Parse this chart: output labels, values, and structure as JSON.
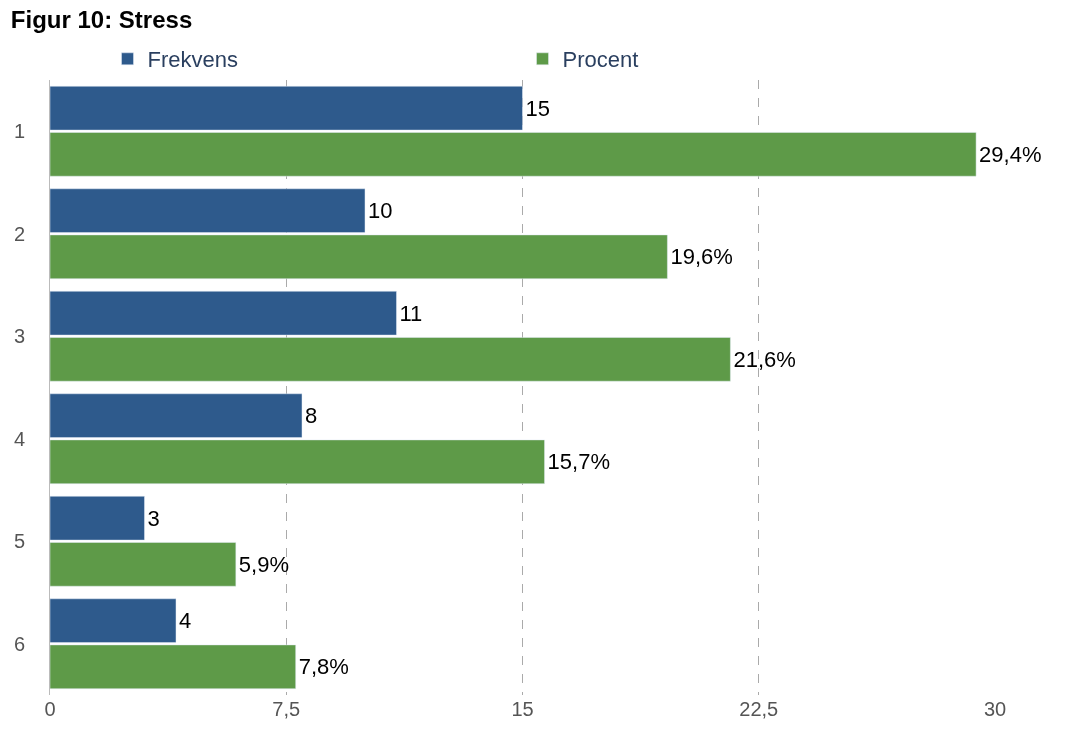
{
  "chart_data": {
    "type": "bar",
    "orientation": "horizontal",
    "title": "Figur 10: Stress",
    "categories": [
      "1",
      "2",
      "3",
      "4",
      "5",
      "6"
    ],
    "series": [
      {
        "name": "Frekvens",
        "color": "#2e5a8c",
        "values": [
          15,
          10,
          11,
          8,
          3,
          4
        ],
        "value_labels": [
          "15",
          "10",
          "11",
          "8",
          "3",
          "4"
        ]
      },
      {
        "name": "Procent",
        "color": "#5e9a48",
        "values": [
          29.4,
          19.6,
          21.6,
          15.7,
          5.9,
          7.8
        ],
        "value_labels": [
          "29,4%",
          "19,6%",
          "21,6%",
          "15,7%",
          "5,9%",
          "7,8%"
        ]
      }
    ],
    "xlim": [
      0,
      30
    ],
    "xticks": [
      0,
      {
        "value": 7.5,
        "label": "7,5"
      },
      15,
      {
        "value": 22.5,
        "label": "22,5"
      },
      30
    ],
    "grid": "x",
    "legend": "top"
  }
}
